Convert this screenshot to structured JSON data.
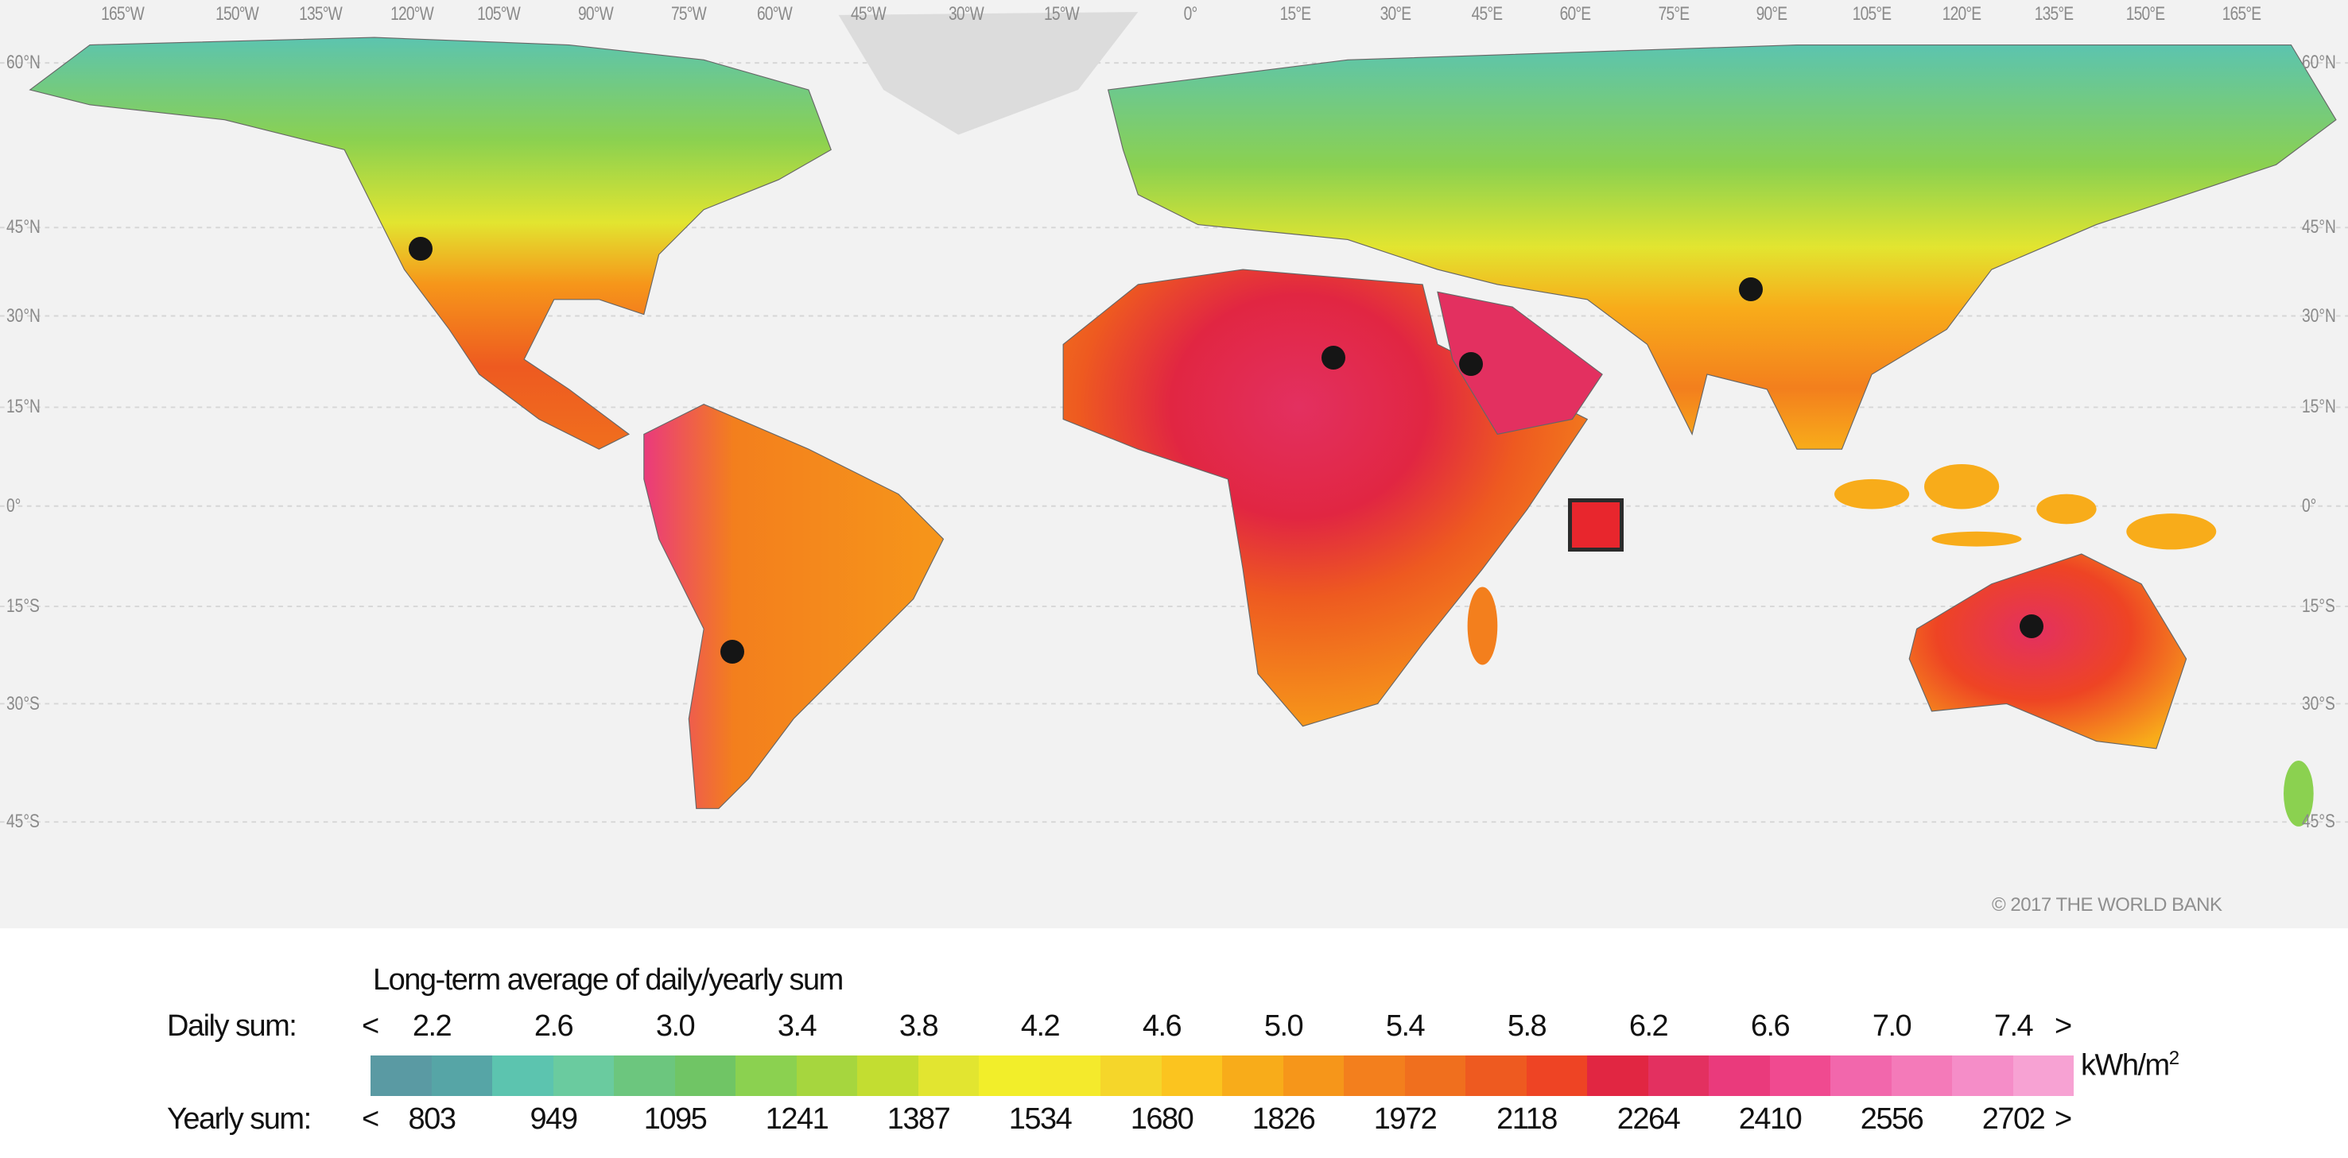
{
  "map": {
    "longitude_labels": [
      "165°W",
      "150°W",
      "135°W",
      "120°W",
      "105°W",
      "90°W",
      "75°W",
      "60°W",
      "45°W",
      "30°W",
      "15°W",
      "0°",
      "15°E",
      "30°E",
      "45°E",
      "60°E",
      "75°E",
      "90°E",
      "105°E",
      "120°E",
      "135°E",
      "150°E",
      "165°E"
    ],
    "latitude_labels": [
      "60°N",
      "45°N",
      "30°N",
      "15°N",
      "0°",
      "15°S",
      "30°S",
      "45°S"
    ],
    "copyright": "© 2017 THE WORLD BANK",
    "marker_color": "#e8262d"
  },
  "legend": {
    "title": "Long-term average of daily/yearly sum",
    "daily_label": "Daily sum:",
    "yearly_label": "Yearly sum:",
    "less_than": "<",
    "greater_than": ">",
    "unit": "kWh/m",
    "unit_exponent": "2",
    "daily_values": [
      "2.2",
      "2.6",
      "3.0",
      "3.4",
      "3.8",
      "4.2",
      "4.6",
      "5.0",
      "5.4",
      "5.8",
      "6.2",
      "6.6",
      "7.0",
      "7.4"
    ],
    "yearly_values": [
      "803",
      "949",
      "1095",
      "1241",
      "1387",
      "1534",
      "1680",
      "1826",
      "1972",
      "2118",
      "2264",
      "2410",
      "2556",
      "2702"
    ],
    "colors": [
      "#5a9aa3",
      "#56a5a6",
      "#5cc4af",
      "#6acb9f",
      "#6cc67e",
      "#70c565",
      "#8bd150",
      "#a6d63e",
      "#c3dd31",
      "#e2e530",
      "#f2ee2a",
      "#f4ea2c",
      "#f5d62a",
      "#fbc41f",
      "#f8ac1a",
      "#f6961a",
      "#f37f1d",
      "#f06f1e",
      "#ee5a20",
      "#ee4424",
      "#e12642",
      "#e33060",
      "#ea3a7c",
      "#f04a90",
      "#f267ac",
      "#f47ab9",
      "#f58dc8",
      "#f7a2d3"
    ]
  }
}
